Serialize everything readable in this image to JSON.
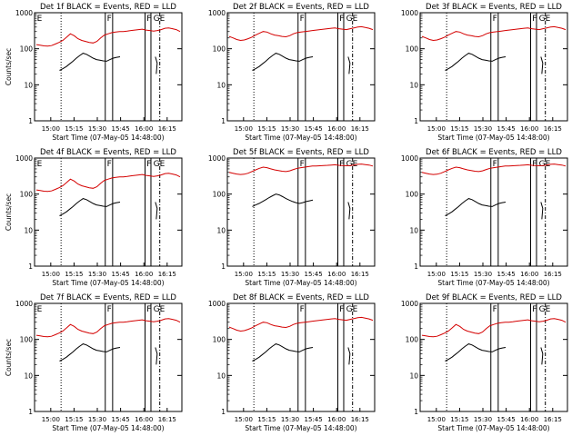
{
  "figure": {
    "background": "#ffffff",
    "events_color": "#000000",
    "lld_color": "#d40000"
  },
  "chart_data": [
    {
      "type": "line",
      "title": "Det 1f BLACK = Events, RED = LLD",
      "ylabel": "Counts/sec",
      "xlabel": "Start Time (07-May-05 14:48:00)",
      "xticks": [
        "15:00",
        "15:15",
        "15:30",
        "15:45",
        "16:00",
        "16:15"
      ],
      "yticks": [
        "1",
        "10",
        "100",
        "1000"
      ],
      "yscale": "log",
      "ylim": [
        1,
        1000
      ],
      "annotations": [
        "E",
        "F",
        "F",
        "GE"
      ],
      "series": [
        {
          "values": [
            130,
            125,
            120,
            118,
            122,
            135,
            150,
            170,
            210,
            260,
            230,
            190,
            170,
            160,
            150,
            145,
            160,
            200,
            240,
            260,
            280,
            290,
            300,
            300,
            310,
            320,
            330,
            340,
            350,
            330,
            320,
            310,
            320,
            340,
            370,
            380,
            360,
            340,
            300
          ]
        },
        {
          "values": [
            25,
            28,
            32,
            38,
            45,
            55,
            65,
            75,
            70,
            62,
            55,
            50,
            48,
            46,
            45,
            50,
            55,
            58,
            60
          ]
        }
      ]
    },
    {
      "type": "line",
      "title": "Det 2f BLACK = Events, RED = LLD",
      "ylabel": "",
      "xlabel": "Start Time (07-May-05 14:48:00)",
      "xticks": [
        "15:00",
        "15:15",
        "15:30",
        "15:45",
        "16:00",
        "16:15"
      ],
      "yticks": [
        "1",
        "10",
        "100",
        "1000"
      ],
      "yscale": "log",
      "ylim": [
        1,
        1000
      ],
      "annotations": [
        "F",
        "F",
        "GE"
      ],
      "series": [
        {
          "values": [
            220,
            200,
            180,
            170,
            175,
            190,
            210,
            240,
            270,
            300,
            290,
            260,
            240,
            230,
            220,
            215,
            230,
            260,
            280,
            290,
            300,
            310,
            320,
            330,
            340,
            350,
            360,
            370,
            380,
            360,
            350,
            340,
            360,
            380,
            400,
            410,
            390,
            370,
            340
          ]
        },
        {
          "values": [
            25,
            28,
            32,
            38,
            45,
            55,
            65,
            75,
            70,
            62,
            55,
            50,
            48,
            46,
            45,
            50,
            55,
            58,
            60
          ]
        }
      ]
    },
    {
      "type": "line",
      "title": "Det 3f BLACK = Events, RED = LLD",
      "ylabel": "",
      "xlabel": "Start Time (07-May-05 14:48:00)",
      "xticks": [
        "15:00",
        "15:15",
        "15:30",
        "15:45",
        "16:00",
        "16:15"
      ],
      "yticks": [
        "1",
        "10",
        "100",
        "1000"
      ],
      "yscale": "log",
      "ylim": [
        1,
        1000
      ],
      "annotations": [
        "F",
        "F",
        "GE"
      ],
      "series": [
        {
          "values": [
            220,
            200,
            180,
            170,
            175,
            190,
            210,
            240,
            270,
            300,
            290,
            260,
            240,
            230,
            220,
            215,
            230,
            260,
            280,
            290,
            300,
            310,
            320,
            330,
            340,
            350,
            360,
            370,
            380,
            360,
            350,
            340,
            360,
            380,
            400,
            410,
            390,
            370,
            340
          ]
        },
        {
          "values": [
            25,
            28,
            32,
            38,
            45,
            55,
            65,
            75,
            70,
            62,
            55,
            50,
            48,
            46,
            45,
            50,
            55,
            58,
            60
          ]
        }
      ]
    },
    {
      "type": "line",
      "title": "Det 4f BLACK = Events, RED = LLD",
      "ylabel": "Counts/sec",
      "xlabel": "Start Time (07-May-05 14:48:00)",
      "xticks": [
        "15:00",
        "15:15",
        "15:30",
        "15:45",
        "16:00",
        "16:15"
      ],
      "yticks": [
        "1",
        "10",
        "100",
        "1000"
      ],
      "yscale": "log",
      "ylim": [
        1,
        1000
      ],
      "annotations": [
        "E",
        "F",
        "F",
        "GE"
      ],
      "series": [
        {
          "values": [
            130,
            125,
            120,
            118,
            122,
            135,
            150,
            170,
            210,
            260,
            230,
            190,
            170,
            160,
            150,
            145,
            160,
            200,
            240,
            260,
            280,
            290,
            300,
            300,
            310,
            320,
            330,
            340,
            350,
            330,
            320,
            310,
            320,
            340,
            370,
            380,
            360,
            340,
            300
          ]
        },
        {
          "values": [
            25,
            28,
            32,
            38,
            45,
            55,
            65,
            75,
            70,
            62,
            55,
            50,
            48,
            46,
            45,
            50,
            55,
            58,
            60
          ]
        }
      ]
    },
    {
      "type": "line",
      "title": "Det 5f BLACK = Events, RED = LLD",
      "ylabel": "",
      "xlabel": "Start Time (07-May-05 14:48:00)",
      "xticks": [
        "15:00",
        "15:15",
        "15:30",
        "15:45",
        "16:00",
        "16:15"
      ],
      "yticks": [
        "1",
        "10",
        "100",
        "1000"
      ],
      "yscale": "log",
      "ylim": [
        1,
        1000
      ],
      "annotations": [
        "F",
        "F",
        "GE"
      ],
      "series": [
        {
          "values": [
            400,
            380,
            360,
            350,
            355,
            380,
            420,
            470,
            520,
            560,
            540,
            500,
            470,
            450,
            430,
            420,
            440,
            480,
            520,
            540,
            560,
            580,
            600,
            600,
            610,
            620,
            630,
            640,
            650,
            630,
            620,
            610,
            620,
            640,
            670,
            680,
            660,
            640,
            600
          ]
        },
        {
          "values": [
            45,
            50,
            55,
            62,
            70,
            80,
            90,
            100,
            95,
            85,
            75,
            68,
            62,
            58,
            55,
            58,
            62,
            65,
            68
          ]
        }
      ]
    },
    {
      "type": "line",
      "title": "Det 6f BLACK = Events, RED = LLD",
      "ylabel": "",
      "xlabel": "Start Time (07-May-05 14:48:00)",
      "xticks": [
        "15:00",
        "15:15",
        "15:30",
        "15:45",
        "16:00",
        "16:15"
      ],
      "yticks": [
        "1",
        "10",
        "100",
        "1000"
      ],
      "yscale": "log",
      "ylim": [
        1,
        1000
      ],
      "annotations": [
        "F",
        "F",
        "GE"
      ],
      "series": [
        {
          "values": [
            400,
            380,
            360,
            350,
            355,
            380,
            420,
            470,
            520,
            560,
            540,
            500,
            470,
            450,
            430,
            420,
            440,
            480,
            520,
            540,
            560,
            580,
            600,
            600,
            610,
            620,
            630,
            640,
            650,
            630,
            620,
            610,
            620,
            640,
            670,
            680,
            660,
            640,
            600
          ]
        },
        {
          "values": [
            25,
            28,
            32,
            38,
            45,
            55,
            65,
            75,
            70,
            62,
            55,
            50,
            48,
            46,
            45,
            50,
            55,
            58,
            60
          ]
        }
      ]
    },
    {
      "type": "line",
      "title": "Det 7f BLACK = Events, RED = LLD",
      "ylabel": "Counts/sec",
      "xlabel": "Start Time (07-May-05 14:48:00)",
      "xticks": [
        "15:00",
        "15:15",
        "15:30",
        "15:45",
        "16:00",
        "16:15"
      ],
      "yticks": [
        "1",
        "10",
        "100",
        "1000"
      ],
      "yscale": "log",
      "ylim": [
        1,
        1000
      ],
      "annotations": [
        "E",
        "F",
        "F",
        "GE"
      ],
      "series": [
        {
          "values": [
            130,
            125,
            120,
            118,
            122,
            135,
            150,
            170,
            210,
            260,
            230,
            190,
            170,
            160,
            150,
            145,
            160,
            200,
            240,
            260,
            280,
            290,
            300,
            300,
            310,
            320,
            330,
            340,
            350,
            330,
            320,
            310,
            320,
            340,
            370,
            380,
            360,
            340,
            300
          ]
        },
        {
          "values": [
            25,
            28,
            32,
            38,
            45,
            55,
            65,
            75,
            70,
            62,
            55,
            50,
            48,
            46,
            45,
            50,
            55,
            58,
            60
          ]
        }
      ]
    },
    {
      "type": "line",
      "title": "Det 8f BLACK = Events, RED = LLD",
      "ylabel": "",
      "xlabel": "Start Time (07-May-05 14:48:00)",
      "xticks": [
        "15:00",
        "15:15",
        "15:30",
        "15:45",
        "16:00",
        "16:15"
      ],
      "yticks": [
        "1",
        "10",
        "100",
        "1000"
      ],
      "yscale": "log",
      "ylim": [
        1,
        1000
      ],
      "annotations": [
        "F",
        "F",
        "GE"
      ],
      "series": [
        {
          "values": [
            220,
            200,
            180,
            170,
            175,
            190,
            210,
            240,
            270,
            300,
            290,
            260,
            240,
            230,
            220,
            215,
            230,
            260,
            280,
            290,
            300,
            310,
            320,
            330,
            340,
            350,
            360,
            370,
            380,
            360,
            350,
            340,
            360,
            380,
            400,
            410,
            390,
            370,
            340
          ]
        },
        {
          "values": [
            25,
            28,
            32,
            38,
            45,
            55,
            65,
            75,
            70,
            62,
            55,
            50,
            48,
            46,
            45,
            50,
            55,
            58,
            60
          ]
        }
      ]
    },
    {
      "type": "line",
      "title": "Det 9f BLACK = Events, RED = LLD",
      "ylabel": "",
      "xlabel": "Start Time (07-May-05 14:48:00)",
      "xticks": [
        "15:00",
        "15:15",
        "15:30",
        "15:45",
        "16:00",
        "16:15"
      ],
      "yticks": [
        "1",
        "10",
        "100",
        "1000"
      ],
      "yscale": "log",
      "ylim": [
        1,
        1000
      ],
      "annotations": [
        "F",
        "F",
        "GE"
      ],
      "series": [
        {
          "values": [
            130,
            125,
            120,
            118,
            122,
            135,
            150,
            170,
            210,
            260,
            230,
            190,
            170,
            160,
            150,
            145,
            160,
            200,
            240,
            260,
            280,
            290,
            300,
            300,
            310,
            320,
            330,
            340,
            350,
            330,
            320,
            310,
            320,
            340,
            370,
            380,
            360,
            340,
            300
          ]
        },
        {
          "values": [
            25,
            28,
            32,
            38,
            45,
            55,
            65,
            75,
            70,
            62,
            55,
            50,
            48,
            46,
            45,
            50,
            55,
            58,
            60
          ]
        }
      ]
    }
  ]
}
